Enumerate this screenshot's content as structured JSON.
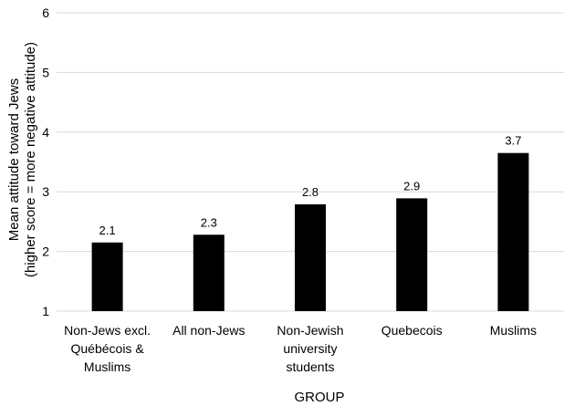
{
  "chart_data": {
    "type": "bar",
    "categories": [
      [
        "Non-Jews excl.",
        "Québécois &",
        "Muslims"
      ],
      [
        "All non-Jews"
      ],
      [
        "Non-Jewish",
        "university",
        "students"
      ],
      [
        "Quebecois"
      ],
      [
        "Muslims"
      ]
    ],
    "values": [
      2.15,
      2.28,
      2.79,
      2.89,
      3.65
    ],
    "data_labels": [
      "2.1",
      "2.3",
      "2.8",
      "2.9",
      "3.7"
    ],
    "title": "",
    "xlabel": "GROUP",
    "ylabel": [
      "Mean attitude toward Jews",
      "(higher score = more negative attitude)"
    ],
    "ylim": [
      1,
      6
    ],
    "yticks": [
      1,
      2,
      3,
      4,
      5,
      6
    ],
    "grid": "horizontal",
    "bar_color": "#000000",
    "grid_color": "#d9d9d9"
  }
}
